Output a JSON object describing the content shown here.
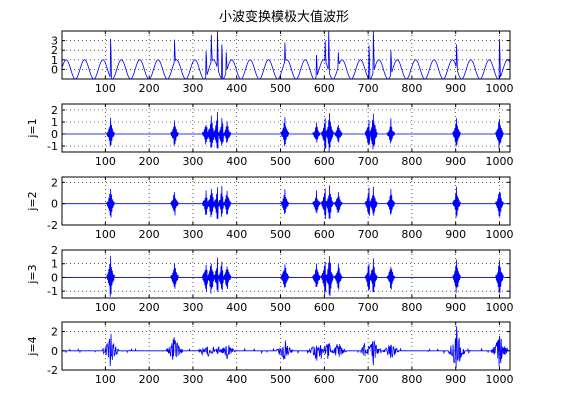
{
  "figure": {
    "title": "小波变换模极大值波形"
  },
  "chart_data": [
    {
      "type": "line",
      "ylabel": "",
      "xlim": [
        1,
        1024
      ],
      "ylim": [
        -1,
        4
      ],
      "xticks": [
        100,
        200,
        300,
        400,
        500,
        600,
        700,
        800,
        900,
        1000
      ],
      "yticks": [
        0,
        1,
        2,
        3
      ],
      "grid": true,
      "series": [
        {
          "kind": "sine",
          "period": 42,
          "amplitude": 1,
          "color": "#0000ff",
          "spikes": [
            {
              "x": 112,
              "y": 3.2
            },
            {
              "x": 258,
              "y": 3.1
            },
            {
              "x": 330,
              "y": 1.9
            },
            {
              "x": 342,
              "y": 3.6
            },
            {
              "x": 356,
              "y": 4.0
            },
            {
              "x": 366,
              "y": 2.6
            },
            {
              "x": 376,
              "y": 1.8
            },
            {
              "x": 510,
              "y": 2.8
            },
            {
              "x": 582,
              "y": 1.5
            },
            {
              "x": 602,
              "y": 3.0
            },
            {
              "x": 610,
              "y": 4.0
            },
            {
              "x": 632,
              "y": 1.8
            },
            {
              "x": 702,
              "y": 2.5
            },
            {
              "x": 712,
              "y": 4.0
            },
            {
              "x": 752,
              "y": 2.0
            },
            {
              "x": 902,
              "y": 2.6
            },
            {
              "x": 1000,
              "y": 3.1
            }
          ]
        }
      ]
    },
    {
      "type": "line",
      "ylabel": "j=1",
      "xlim": [
        1,
        1024
      ],
      "ylim": [
        -1.5,
        2.5
      ],
      "xticks": [
        100,
        200,
        300,
        400,
        500,
        600,
        700,
        800,
        900,
        1000
      ],
      "yticks": [
        -1,
        0,
        1,
        2
      ],
      "grid": true,
      "series": [
        {
          "kind": "bursts",
          "color": "#0000ff",
          "bursts": [
            {
              "x": 112,
              "amp": 1.5
            },
            {
              "x": 258,
              "amp": 1.3
            },
            {
              "x": 330,
              "amp": 1.2
            },
            {
              "x": 342,
              "amp": 2.0
            },
            {
              "x": 356,
              "amp": 2.2
            },
            {
              "x": 366,
              "amp": 1.6
            },
            {
              "x": 378,
              "amp": 1.2
            },
            {
              "x": 510,
              "amp": 1.6
            },
            {
              "x": 582,
              "amp": 1.0
            },
            {
              "x": 602,
              "amp": 1.8
            },
            {
              "x": 612,
              "amp": 2.2
            },
            {
              "x": 632,
              "amp": 1.1
            },
            {
              "x": 702,
              "amp": 1.8
            },
            {
              "x": 712,
              "amp": 2.2
            },
            {
              "x": 752,
              "amp": 1.3
            },
            {
              "x": 902,
              "amp": 1.6
            },
            {
              "x": 1000,
              "amp": 1.7
            }
          ]
        }
      ]
    },
    {
      "type": "line",
      "ylabel": "j=2",
      "xlim": [
        1,
        1024
      ],
      "ylim": [
        -2,
        2.5
      ],
      "xticks": [
        100,
        200,
        300,
        400,
        500,
        600,
        700,
        800,
        900,
        1000
      ],
      "yticks": [
        -2,
        0,
        2
      ],
      "grid": true,
      "series": [
        {
          "kind": "bursts",
          "color": "#0000ff",
          "bursts": [
            {
              "x": 112,
              "amp": 1.8
            },
            {
              "x": 258,
              "amp": 1.5
            },
            {
              "x": 330,
              "amp": 1.5
            },
            {
              "x": 342,
              "amp": 2.0
            },
            {
              "x": 356,
              "amp": 2.0
            },
            {
              "x": 366,
              "amp": 1.7
            },
            {
              "x": 378,
              "amp": 1.5
            },
            {
              "x": 510,
              "amp": 1.7
            },
            {
              "x": 582,
              "amp": 1.3
            },
            {
              "x": 602,
              "amp": 2.0
            },
            {
              "x": 612,
              "amp": 2.0
            },
            {
              "x": 632,
              "amp": 1.4
            },
            {
              "x": 702,
              "amp": 1.8
            },
            {
              "x": 712,
              "amp": 2.0
            },
            {
              "x": 752,
              "amp": 1.5
            },
            {
              "x": 902,
              "amp": 1.8
            },
            {
              "x": 1000,
              "amp": 1.8
            }
          ]
        }
      ]
    },
    {
      "type": "line",
      "ylabel": "j=3",
      "xlim": [
        1,
        1024
      ],
      "ylim": [
        -1.5,
        2
      ],
      "xticks": [
        100,
        200,
        300,
        400,
        500,
        600,
        700,
        800,
        900,
        1000
      ],
      "yticks": [
        -1,
        0,
        1,
        2
      ],
      "grid": true,
      "series": [
        {
          "kind": "bursts",
          "color": "#0000ff",
          "bursts": [
            {
              "x": 112,
              "amp": 1.9
            },
            {
              "x": 258,
              "amp": 1.4
            },
            {
              "x": 330,
              "amp": 1.5
            },
            {
              "x": 342,
              "amp": 1.6
            },
            {
              "x": 356,
              "amp": 1.6
            },
            {
              "x": 366,
              "amp": 1.4
            },
            {
              "x": 378,
              "amp": 1.3
            },
            {
              "x": 510,
              "amp": 1.5
            },
            {
              "x": 582,
              "amp": 1.2
            },
            {
              "x": 602,
              "amp": 1.7
            },
            {
              "x": 612,
              "amp": 1.9
            },
            {
              "x": 632,
              "amp": 1.3
            },
            {
              "x": 702,
              "amp": 1.5
            },
            {
              "x": 712,
              "amp": 1.6
            },
            {
              "x": 752,
              "amp": 1.2
            },
            {
              "x": 902,
              "amp": 1.6
            },
            {
              "x": 1000,
              "amp": 1.9
            }
          ]
        }
      ]
    },
    {
      "type": "line",
      "ylabel": "j=4",
      "xlim": [
        1,
        1024
      ],
      "ylim": [
        -2,
        3
      ],
      "xticks": [
        100,
        200,
        300,
        400,
        500,
        600,
        700,
        800,
        900,
        1000
      ],
      "yticks": [
        -2,
        0,
        2
      ],
      "grid": true,
      "series": [
        {
          "kind": "sparse",
          "color": "#0000ff",
          "bursts": [
            {
              "x": 112,
              "amp": 2.0
            },
            {
              "x": 258,
              "amp": 1.8
            },
            {
              "x": 330,
              "amp": 1.2
            },
            {
              "x": 342,
              "amp": 1.3
            },
            {
              "x": 356,
              "amp": 1.2
            },
            {
              "x": 366,
              "amp": 1.0
            },
            {
              "x": 378,
              "amp": 1.0
            },
            {
              "x": 510,
              "amp": 1.5
            },
            {
              "x": 582,
              "amp": 1.2
            },
            {
              "x": 602,
              "amp": 2.6
            },
            {
              "x": 612,
              "amp": 1.6
            },
            {
              "x": 632,
              "amp": 1.0
            },
            {
              "x": 702,
              "amp": 2.9
            },
            {
              "x": 712,
              "amp": 1.5
            },
            {
              "x": 752,
              "amp": 1.1
            },
            {
              "x": 902,
              "amp": 2.8
            },
            {
              "x": 1000,
              "amp": 2.1
            }
          ]
        }
      ]
    }
  ]
}
